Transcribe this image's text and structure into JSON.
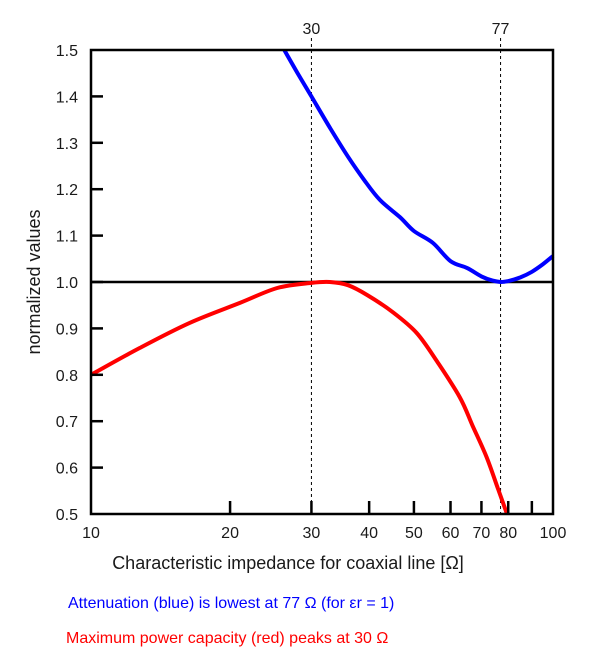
{
  "chart_data": {
    "type": "line",
    "title": "",
    "xlabel": "Characteristic impedance for coaxial line [Ω]",
    "ylabel": "normalized values",
    "xscale": "log",
    "xlim": [
      10,
      100
    ],
    "ylim": [
      0.5,
      1.5
    ],
    "grid": false,
    "x_ticks": [
      10,
      20,
      30,
      40,
      50,
      60,
      70,
      80,
      90,
      100
    ],
    "x_tick_labels": [
      "10",
      "20",
      "30",
      "40",
      "50",
      "60",
      "70",
      "80",
      "",
      "100"
    ],
    "y_ticks": [
      0.5,
      0.6,
      0.7,
      0.8,
      0.9,
      1.0,
      1.1,
      1.2,
      1.3,
      1.4,
      1.5
    ],
    "y_tick_labels": [
      "0.5",
      "0.6",
      "0.7",
      "0.8",
      "0.9",
      "1.0",
      "1.1",
      "1.2",
      "1.3",
      "1.4",
      "1.5"
    ],
    "reference_line": {
      "y": 1.0,
      "color": "#000000"
    },
    "markers": [
      {
        "x": 30,
        "label": "30",
        "style": "dashed"
      },
      {
        "x": 77,
        "label": "77",
        "style": "dashed"
      }
    ],
    "series": [
      {
        "name": "Attenuation",
        "color": "#0000ff",
        "x": [
          26.2,
          28,
          30,
          33,
          36,
          39,
          42.2,
          46.6,
          50,
          55,
          60,
          65.2,
          70,
          74,
          77,
          80,
          85,
          90,
          95,
          100
        ],
        "y": [
          1.5,
          1.45,
          1.4,
          1.33,
          1.27,
          1.22,
          1.177,
          1.14,
          1.11,
          1.084,
          1.045,
          1.03,
          1.012,
          1.003,
          1.0,
          1.002,
          1.01,
          1.022,
          1.038,
          1.056
        ]
      },
      {
        "name": "Maximum power capacity",
        "color": "#ff0000",
        "x": [
          10,
          12.76,
          16.37,
          21.0,
          25.3,
          30,
          32.9,
          36,
          39.6,
          45,
          50.7,
          56,
          62.8,
          67,
          71.8,
          76,
          79.5
        ],
        "y": [
          0.8,
          0.858,
          0.912,
          0.955,
          0.987,
          0.998,
          1.0,
          0.993,
          0.972,
          0.935,
          0.89,
          0.83,
          0.752,
          0.69,
          0.623,
          0.555,
          0.5
        ]
      }
    ]
  },
  "notes": {
    "blue": "Attenuation (blue) is lowest at 77 Ω (for εr = 1)",
    "red": "Maximum power capacity (red) peaks at 30 Ω"
  }
}
